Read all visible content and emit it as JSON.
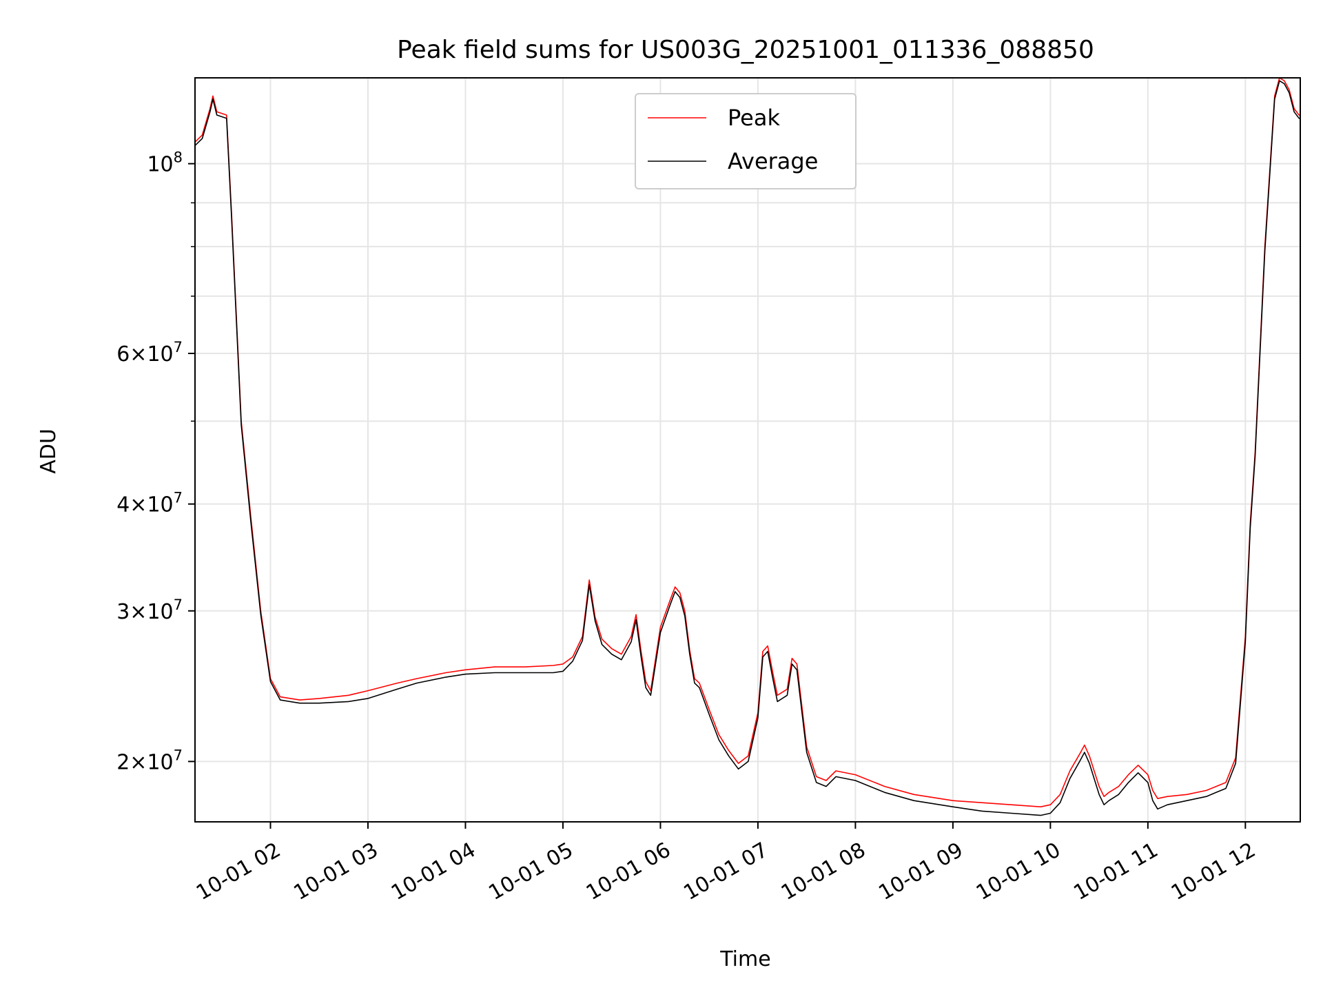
{
  "chart_data": {
    "type": "line",
    "title": "Peak field sums for US003G_20251001_011336_088850",
    "xlabel": "Time",
    "ylabel": "ADU",
    "yscale": "log",
    "xlim": [
      1.226,
      12.563
    ],
    "ylim": [
      17000000,
      126000000
    ],
    "grid": true,
    "legend_position": "top-center",
    "x_ticks": [
      {
        "value": 2,
        "label": "10-01 02"
      },
      {
        "value": 3,
        "label": "10-01 03"
      },
      {
        "value": 4,
        "label": "10-01 04"
      },
      {
        "value": 5,
        "label": "10-01 05"
      },
      {
        "value": 6,
        "label": "10-01 06"
      },
      {
        "value": 7,
        "label": "10-01 07"
      },
      {
        "value": 8,
        "label": "10-01 08"
      },
      {
        "value": 9,
        "label": "10-01 09"
      },
      {
        "value": 10,
        "label": "10-01 10"
      },
      {
        "value": 11,
        "label": "10-01 11"
      },
      {
        "value": 12,
        "label": "10-01 12"
      }
    ],
    "y_ticks": [
      {
        "value": 20000000,
        "mantissa": "2",
        "exponent": "7"
      },
      {
        "value": 30000000,
        "mantissa": "3",
        "exponent": "7"
      },
      {
        "value": 40000000,
        "mantissa": "4",
        "exponent": "7"
      },
      {
        "value": 60000000,
        "mantissa": "6",
        "exponent": "7"
      },
      {
        "value": 100000000,
        "mantissa": "",
        "exponent": "8"
      }
    ],
    "y_minor_ticks": [
      50000000,
      70000000,
      80000000,
      90000000
    ],
    "series": [
      {
        "name": "Peak",
        "color": "#ff0000",
        "x": [
          1.226,
          1.3,
          1.38,
          1.41,
          1.45,
          1.55,
          1.6,
          1.7,
          1.8,
          1.9,
          2.0,
          2.1,
          2.3,
          2.5,
          2.8,
          3.0,
          3.3,
          3.5,
          3.8,
          4.0,
          4.3,
          4.6,
          4.9,
          5.0,
          5.1,
          5.2,
          5.27,
          5.33,
          5.4,
          5.5,
          5.6,
          5.7,
          5.75,
          5.8,
          5.85,
          5.9,
          6.0,
          6.1,
          6.15,
          6.2,
          6.25,
          6.3,
          6.35,
          6.4,
          6.5,
          6.6,
          6.7,
          6.8,
          6.9,
          7.0,
          7.05,
          7.1,
          7.15,
          7.2,
          7.3,
          7.35,
          7.4,
          7.5,
          7.6,
          7.7,
          7.8,
          8.0,
          8.3,
          8.6,
          9.0,
          9.3,
          9.6,
          9.9,
          10.0,
          10.1,
          10.2,
          10.3,
          10.35,
          10.4,
          10.5,
          10.55,
          10.6,
          10.7,
          10.8,
          10.9,
          11.0,
          11.05,
          11.1,
          11.2,
          11.4,
          11.6,
          11.7,
          11.8,
          11.9,
          12.0,
          12.05,
          12.1,
          12.2,
          12.3,
          12.35,
          12.4,
          12.45,
          12.5,
          12.55,
          12.563
        ],
        "y": [
          106000000,
          108000000,
          116000000,
          120000000,
          115000000,
          114000000,
          88000000,
          50000000,
          38500000,
          30000000,
          25000000,
          23800000,
          23600000,
          23700000,
          23900000,
          24200000,
          24700000,
          25000000,
          25400000,
          25600000,
          25800000,
          25800000,
          25900000,
          26000000,
          26500000,
          28000000,
          32600000,
          29500000,
          27800000,
          27100000,
          26700000,
          28000000,
          29700000,
          27000000,
          24800000,
          24200000,
          28700000,
          30900000,
          32000000,
          31500000,
          30000000,
          27000000,
          25000000,
          24700000,
          23000000,
          21500000,
          20600000,
          19900000,
          20300000,
          22800000,
          26900000,
          27300000,
          25500000,
          23900000,
          24300000,
          26400000,
          26000000,
          20800000,
          19200000,
          19000000,
          19500000,
          19300000,
          18700000,
          18300000,
          18000000,
          17900000,
          17800000,
          17700000,
          17800000,
          18300000,
          19500000,
          20400000,
          20900000,
          20300000,
          18700000,
          18200000,
          18400000,
          18700000,
          19300000,
          19800000,
          19300000,
          18500000,
          18100000,
          18200000,
          18300000,
          18500000,
          18700000,
          18900000,
          20200000,
          28000000,
          38000000,
          46000000,
          80000000,
          120000000,
          126000000,
          125000000,
          122000000,
          116000000,
          114000000,
          114000000
        ]
      },
      {
        "name": "Average",
        "color": "#000000",
        "x": [
          1.226,
          1.3,
          1.38,
          1.41,
          1.45,
          1.55,
          1.6,
          1.7,
          1.8,
          1.9,
          2.0,
          2.1,
          2.3,
          2.5,
          2.8,
          3.0,
          3.3,
          3.5,
          3.8,
          4.0,
          4.3,
          4.6,
          4.9,
          5.0,
          5.1,
          5.2,
          5.27,
          5.33,
          5.4,
          5.5,
          5.6,
          5.7,
          5.75,
          5.8,
          5.85,
          5.9,
          6.0,
          6.1,
          6.15,
          6.2,
          6.25,
          6.3,
          6.35,
          6.4,
          6.5,
          6.6,
          6.7,
          6.8,
          6.9,
          7.0,
          7.05,
          7.1,
          7.15,
          7.2,
          7.3,
          7.35,
          7.4,
          7.5,
          7.6,
          7.7,
          7.8,
          8.0,
          8.3,
          8.6,
          9.0,
          9.3,
          9.6,
          9.9,
          10.0,
          10.1,
          10.2,
          10.3,
          10.35,
          10.4,
          10.5,
          10.55,
          10.6,
          10.7,
          10.8,
          10.9,
          11.0,
          11.05,
          11.1,
          11.2,
          11.4,
          11.6,
          11.7,
          11.8,
          11.9,
          12.0,
          12.05,
          12.1,
          12.2,
          12.3,
          12.35,
          12.4,
          12.45,
          12.5,
          12.55,
          12.563
        ],
        "y": [
          105000000,
          107000000,
          115000000,
          119000000,
          114000000,
          113000000,
          87000000,
          49500000,
          38000000,
          29700000,
          24800000,
          23600000,
          23400000,
          23400000,
          23500000,
          23700000,
          24300000,
          24700000,
          25100000,
          25300000,
          25400000,
          25400000,
          25400000,
          25500000,
          26200000,
          27700000,
          32200000,
          29200000,
          27400000,
          26700000,
          26300000,
          27600000,
          29300000,
          26600000,
          24400000,
          23900000,
          28300000,
          30500000,
          31600000,
          31100000,
          29600000,
          26700000,
          24700000,
          24400000,
          22700000,
          21200000,
          20300000,
          19600000,
          20000000,
          22500000,
          26500000,
          26900000,
          25100000,
          23500000,
          23900000,
          26000000,
          25600000,
          20500000,
          18900000,
          18700000,
          19200000,
          19000000,
          18400000,
          18000000,
          17700000,
          17500000,
          17400000,
          17300000,
          17400000,
          17900000,
          19100000,
          20000000,
          20500000,
          19900000,
          18300000,
          17800000,
          18000000,
          18300000,
          18900000,
          19400000,
          18900000,
          18000000,
          17600000,
          17800000,
          18000000,
          18200000,
          18400000,
          18600000,
          19900000,
          27600000,
          37500000,
          45500000,
          79000000,
          119000000,
          125000000,
          124000000,
          121000000,
          115000000,
          113000000,
          113000000
        ]
      }
    ]
  }
}
